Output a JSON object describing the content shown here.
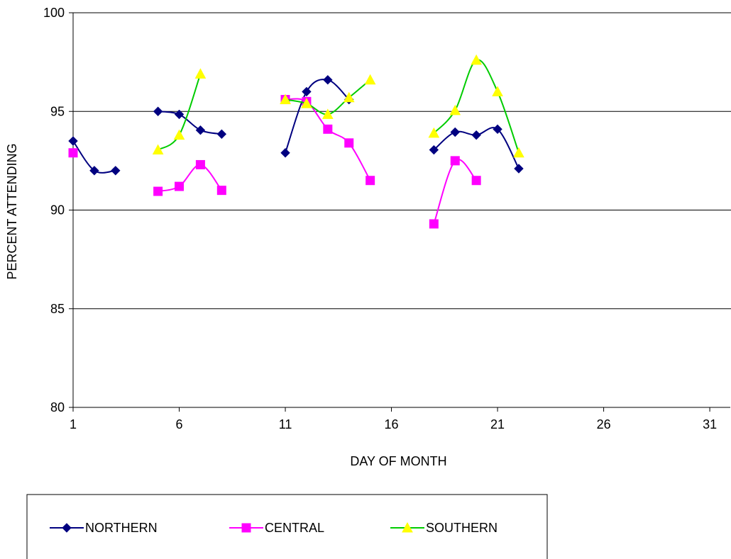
{
  "chart_data": {
    "type": "line",
    "smoothed": true,
    "xlabel": "DAY OF MONTH",
    "ylabel": "PERCENT ATTENDING",
    "xlim": [
      1,
      32
    ],
    "ylim": [
      80,
      100
    ],
    "x_ticks": [
      1,
      6,
      11,
      16,
      21,
      26,
      31
    ],
    "y_ticks": [
      80,
      85,
      90,
      95,
      100
    ],
    "grid": "horizontal major gridlines",
    "legend_position": "bottom-left",
    "series": [
      {
        "name": "NORTHERN",
        "color": "#000080",
        "marker": "diamond",
        "segments": [
          [
            [
              1,
              93.5
            ],
            [
              2,
              92.0
            ],
            [
              3,
              92.0
            ]
          ],
          [
            [
              5,
              95.0
            ],
            [
              6,
              94.85
            ],
            [
              7,
              94.05
            ],
            [
              8,
              93.85
            ]
          ],
          [
            [
              11,
              92.9
            ],
            [
              12,
              96.0
            ],
            [
              13,
              96.6
            ],
            [
              14,
              95.6
            ]
          ],
          [
            [
              18,
              93.05
            ],
            [
              19,
              93.95
            ],
            [
              20,
              93.8
            ],
            [
              21,
              94.1
            ],
            [
              22,
              92.1
            ]
          ]
        ]
      },
      {
        "name": "CENTRAL",
        "color": "#ff00ff",
        "marker": "square",
        "segments": [
          [
            [
              1,
              92.9
            ]
          ],
          [
            [
              5,
              90.95
            ],
            [
              6,
              91.2
            ],
            [
              7,
              92.3
            ],
            [
              8,
              91.0
            ]
          ],
          [
            [
              11,
              95.6
            ],
            [
              12,
              95.5
            ],
            [
              13,
              94.1
            ],
            [
              14,
              93.4
            ],
            [
              15,
              91.5
            ]
          ],
          [
            [
              18,
              89.3
            ],
            [
              19,
              92.5
            ],
            [
              20,
              91.5
            ]
          ]
        ]
      },
      {
        "name": "SOUTHERN",
        "color": "#00cc00",
        "marker_color": "#ffff00",
        "marker": "triangle",
        "segments": [
          [
            [
              5,
              93.05
            ],
            [
              6,
              93.8
            ],
            [
              7,
              96.9
            ]
          ],
          [
            [
              11,
              95.6
            ],
            [
              12,
              95.4
            ],
            [
              13,
              94.85
            ],
            [
              14,
              95.7
            ],
            [
              15,
              96.6
            ]
          ],
          [
            [
              18,
              93.9
            ],
            [
              19,
              95.05
            ],
            [
              20,
              97.6
            ],
            [
              21,
              96.0
            ],
            [
              22,
              92.9
            ]
          ]
        ]
      }
    ]
  }
}
